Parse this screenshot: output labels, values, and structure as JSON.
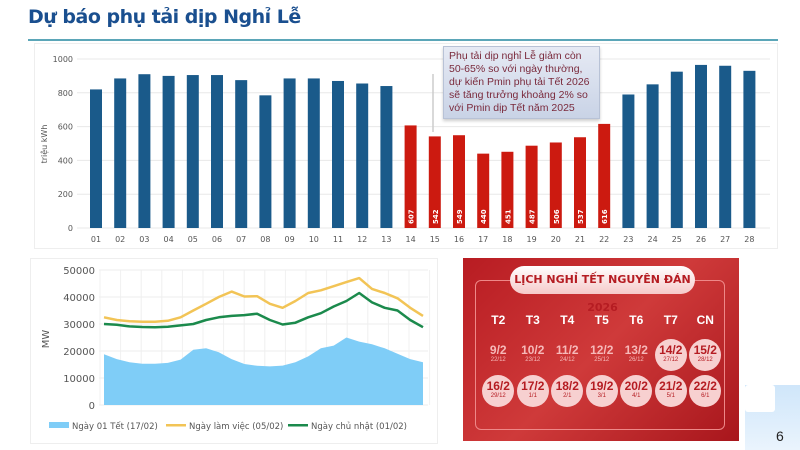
{
  "title": "Dự báo phụ tải dịp Nghỉ Lễ",
  "page_number": "6",
  "annotation": "Phụ tải dịp nghỉ Lễ giảm còn 50-65% so với ngày thường, dự kiến Pmin phụ tải Tết 2026 sẽ tăng trưởng khoảng 2% so với Pmin dịp Tết năm 2025",
  "chart_data": [
    {
      "type": "bar",
      "ylabel": "triệu kWh",
      "ylim": [
        0,
        1000
      ],
      "yticks": [
        "0",
        "200",
        "400",
        "600",
        "800",
        "1000"
      ],
      "grid": true,
      "categories": [
        "01",
        "02",
        "03",
        "04",
        "05",
        "06",
        "07",
        "08",
        "09",
        "10",
        "11",
        "12",
        "13",
        "14",
        "15",
        "16",
        "17",
        "18",
        "19",
        "20",
        "21",
        "22",
        "23",
        "24",
        "25",
        "26",
        "27",
        "28"
      ],
      "values": [
        820,
        885,
        910,
        900,
        905,
        905,
        875,
        785,
        885,
        885,
        870,
        855,
        840,
        607,
        542,
        549,
        440,
        451,
        487,
        506,
        537,
        616,
        790,
        850,
        925,
        965,
        960,
        930
      ],
      "highlighted": [
        false,
        false,
        false,
        false,
        false,
        false,
        false,
        false,
        false,
        false,
        false,
        false,
        false,
        true,
        true,
        true,
        true,
        true,
        true,
        true,
        true,
        true,
        false,
        false,
        false,
        false,
        false,
        false
      ],
      "data_labels": [
        "",
        "",
        "",
        "",
        "",
        "",
        "",
        "",
        "",
        "",
        "",
        "",
        "",
        "607",
        "542",
        "549",
        "440",
        "451",
        "487",
        "506",
        "537",
        "616",
        "",
        "",
        "",
        "",
        "",
        ""
      ],
      "colors": {
        "normal": "#1a5a8a",
        "holiday": "#cc1a10"
      }
    },
    {
      "type": "line",
      "ylabel": "MW",
      "ylim": [
        0,
        50000
      ],
      "yticks": [
        "0",
        "10000",
        "20000",
        "30000",
        "40000",
        "50000"
      ],
      "grid": true,
      "legend_position": "bottom",
      "series": [
        {
          "name": "Ngày 01 Tết (17/02)",
          "style": "area",
          "color": "#7fcdf7",
          "values": [
            18800,
            17000,
            15800,
            15300,
            15300,
            15600,
            16800,
            20500,
            21000,
            19500,
            17000,
            15200,
            14500,
            14300,
            14600,
            15800,
            18000,
            21000,
            22000,
            25000,
            23500,
            22500,
            21000,
            19000,
            17000,
            15800
          ]
        },
        {
          "name": "Ngày làm việc (05/02)",
          "style": "line",
          "color": "#f2c456",
          "values": [
            32500,
            31500,
            31000,
            30800,
            30800,
            31200,
            32500,
            35000,
            37500,
            40000,
            42000,
            40200,
            40300,
            37500,
            36000,
            38500,
            41500,
            42500,
            44000,
            45500,
            47000,
            43000,
            41500,
            39500,
            36000,
            33000
          ]
        },
        {
          "name": "Ngày chủ nhật (01/02)",
          "style": "line",
          "color": "#1b8a4c",
          "values": [
            30000,
            29700,
            29100,
            28900,
            28800,
            29000,
            29500,
            30000,
            31500,
            32500,
            33000,
            33300,
            33800,
            31500,
            29800,
            30500,
            32500,
            34000,
            36500,
            38500,
            41500,
            38000,
            36000,
            35000,
            31500,
            28800
          ]
        }
      ]
    }
  ],
  "calendar": {
    "title": "LỊCH NGHỈ TẾT NGUYÊN ĐÁN 2026",
    "weekdays": [
      "T2",
      "T3",
      "T4",
      "T5",
      "T6",
      "T7",
      "CN"
    ],
    "days": [
      {
        "solar": "9/2",
        "lunar": "22/12",
        "holiday": false
      },
      {
        "solar": "10/2",
        "lunar": "23/12",
        "holiday": false
      },
      {
        "solar": "11/2",
        "lunar": "24/12",
        "holiday": false
      },
      {
        "solar": "12/2",
        "lunar": "25/12",
        "holiday": false
      },
      {
        "solar": "13/2",
        "lunar": "26/12",
        "holiday": false
      },
      {
        "solar": "14/2",
        "lunar": "27/12",
        "holiday": true
      },
      {
        "solar": "15/2",
        "lunar": "28/12",
        "holiday": true
      },
      {
        "solar": "16/2",
        "lunar": "29/12",
        "holiday": true
      },
      {
        "solar": "17/2",
        "lunar": "1/1",
        "holiday": true
      },
      {
        "solar": "18/2",
        "lunar": "2/1",
        "holiday": true
      },
      {
        "solar": "19/2",
        "lunar": "3/1",
        "holiday": true
      },
      {
        "solar": "20/2",
        "lunar": "4/1",
        "holiday": true
      },
      {
        "solar": "21/2",
        "lunar": "5/1",
        "holiday": true
      },
      {
        "solar": "22/2",
        "lunar": "6/1",
        "holiday": true
      }
    ]
  }
}
